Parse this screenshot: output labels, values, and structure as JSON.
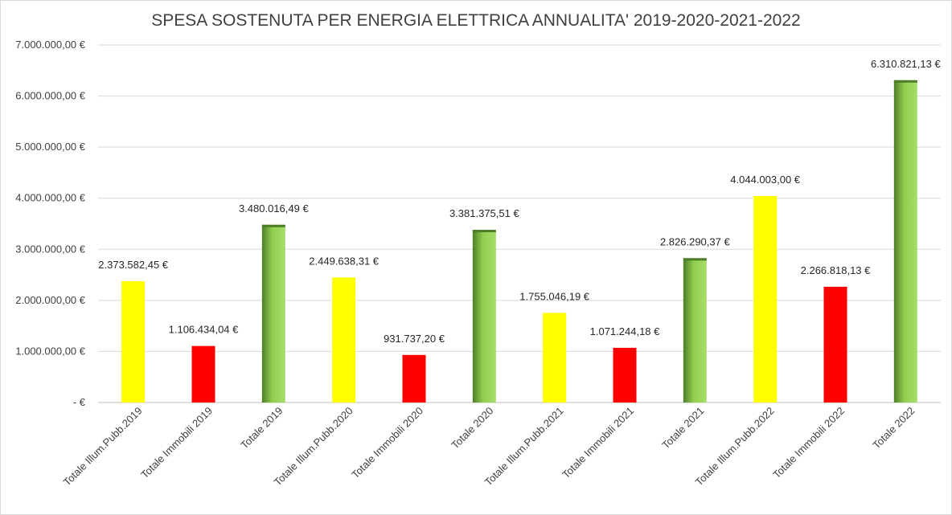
{
  "chart_data": {
    "type": "bar",
    "title": "SPESA SOSTENUTA PER ENERGIA ELETTRICA ANNUALITA' 2019-2020-2021-2022",
    "categories": [
      "Totale Illum.Pubb.2019",
      "Totale Immobili 2019",
      "Totale 2019",
      "Totale Illum.Pubb.2020",
      "Totale Immobili 2020",
      "Totale 2020",
      "Totale Illum.Pubb.2021",
      "Totale Immobili 2021",
      "Totale 2021",
      "Totale Illum.Pubb.2022",
      "Totale Immobili 2022",
      "Totale  2022"
    ],
    "values": [
      2373582.45,
      1106434.04,
      3480016.49,
      2449638.31,
      931737.2,
      3381375.51,
      1755046.19,
      1071244.18,
      2826290.37,
      4044003.0,
      2266818.13,
      6310821.13
    ],
    "data_labels": [
      "2.373.582,45 €",
      "1.106.434,04 €",
      "3.480.016,49 €",
      "2.449.638,31 €",
      "931.737,20 €",
      "3.381.375,51 €",
      "1.755.046,19 €",
      "1.071.244,18 €",
      "2.826.290,37 €",
      "4.044.003,00 €",
      "2.266.818,13 €",
      "6.310.821,13 €"
    ],
    "bar_kinds": [
      "illum",
      "immobili",
      "totale",
      "illum",
      "immobili",
      "totale",
      "illum",
      "immobili",
      "totale",
      "illum",
      "immobili",
      "totale"
    ],
    "colors": {
      "illum": "#ffff00",
      "immobili": "#ff0000",
      "totale": "#92d050",
      "totale_shade": "#4e7d28"
    },
    "ylim": [
      0,
      7000000
    ],
    "yticks": [
      0,
      1000000,
      2000000,
      3000000,
      4000000,
      5000000,
      6000000,
      7000000
    ],
    "ytick_labels": [
      "-  €",
      "1.000.000,00 €",
      "2.000.000,00 €",
      "3.000.000,00 €",
      "4.000.000,00 €",
      "5.000.000,00 €",
      "6.000.000,00 €",
      "7.000.000,00 €"
    ],
    "grid": true,
    "legend": false
  }
}
